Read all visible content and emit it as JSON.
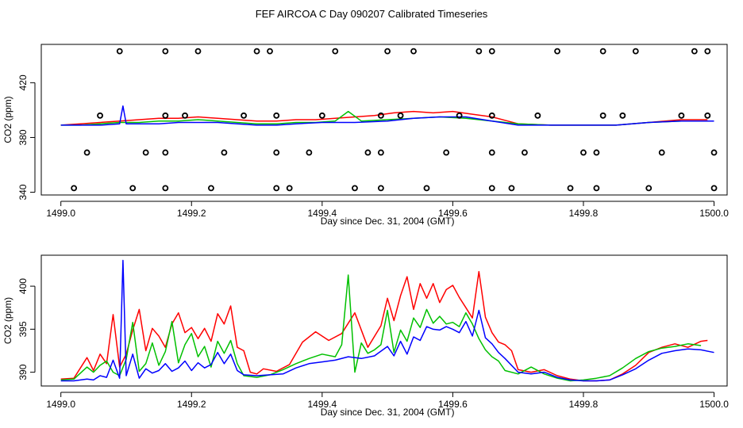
{
  "title": "FEF AIRCOA C  Day 090207  Calibrated Timeseries",
  "chart_data": [
    {
      "type": "line",
      "panel": "top",
      "title": "",
      "xlabel": "Day since Dec. 31, 2004 (GMT)",
      "ylabel": "CO2 (ppm)",
      "xlim": [
        1498.97,
        1500.02
      ],
      "ylim": [
        338,
        448
      ],
      "x_ticks": [
        1499.0,
        1499.2,
        1499.4,
        1499.6,
        1499.8,
        1500.0
      ],
      "x_tick_labels": [
        "1499.0",
        "1499.2",
        "1499.4",
        "1499.6",
        "1499.8",
        "1500.0"
      ],
      "y_ticks": [
        340,
        380,
        420
      ],
      "y_tick_labels": [
        "340",
        "380",
        "420"
      ],
      "series": [
        {
          "name": "red",
          "color": "#ff0000",
          "x": [
            1499.0,
            1499.03,
            1499.06,
            1499.09,
            1499.12,
            1499.15,
            1499.18,
            1499.21,
            1499.24,
            1499.27,
            1499.3,
            1499.33,
            1499.36,
            1499.39,
            1499.42,
            1499.45,
            1499.48,
            1499.51,
            1499.54,
            1499.57,
            1499.6,
            1499.63,
            1499.66,
            1499.7,
            1499.75,
            1499.8,
            1499.85,
            1499.9,
            1499.95,
            1499.99
          ],
          "y": [
            389,
            390,
            391,
            392,
            393,
            394,
            394,
            395,
            394,
            393,
            392,
            392,
            393,
            393,
            394,
            395,
            396,
            398,
            399,
            398,
            399,
            397,
            395,
            390,
            389,
            389,
            389,
            391,
            393,
            393
          ]
        },
        {
          "name": "green",
          "color": "#00c000",
          "x": [
            1499.0,
            1499.03,
            1499.06,
            1499.09,
            1499.12,
            1499.15,
            1499.18,
            1499.21,
            1499.24,
            1499.27,
            1499.3,
            1499.33,
            1499.36,
            1499.39,
            1499.42,
            1499.44,
            1499.46,
            1499.5,
            1499.54,
            1499.58,
            1499.62,
            1499.66,
            1499.7,
            1499.75,
            1499.8,
            1499.85,
            1499.9,
            1499.95,
            1499.99
          ],
          "y": [
            389,
            389,
            390,
            391,
            391,
            392,
            392,
            393,
            392,
            391,
            390,
            390,
            391,
            391,
            392,
            399,
            392,
            393,
            394,
            395,
            394,
            392,
            390,
            389,
            389,
            389,
            391,
            392,
            392
          ]
        },
        {
          "name": "blue",
          "color": "#0000ff",
          "x": [
            1499.0,
            1499.03,
            1499.06,
            1499.09,
            1499.095,
            1499.1,
            1499.12,
            1499.15,
            1499.18,
            1499.21,
            1499.24,
            1499.27,
            1499.3,
            1499.33,
            1499.36,
            1499.4,
            1499.45,
            1499.5,
            1499.54,
            1499.58,
            1499.62,
            1499.66,
            1499.7,
            1499.75,
            1499.8,
            1499.85,
            1499.9,
            1499.95,
            1500.0
          ],
          "y": [
            389,
            389,
            389,
            390,
            403,
            390,
            390,
            390,
            391,
            391,
            391,
            390,
            389,
            389,
            390,
            391,
            391,
            392,
            394,
            395,
            395,
            392,
            389,
            389,
            389,
            389,
            391,
            392,
            392
          ]
        }
      ],
      "markers": {
        "symbol": "circle",
        "x": [
          1499.09,
          1499.16,
          1499.21,
          1499.3,
          1499.32,
          1499.42,
          1499.5,
          1499.54,
          1499.64,
          1499.66,
          1499.76,
          1499.83,
          1499.88,
          1499.97,
          1499.99,
          1499.06,
          1499.16,
          1499.19,
          1499.28,
          1499.33,
          1499.4,
          1499.49,
          1499.52,
          1499.61,
          1499.66,
          1499.73,
          1499.83,
          1499.86,
          1499.95,
          1499.99,
          1499.04,
          1499.13,
          1499.16,
          1499.25,
          1499.33,
          1499.38,
          1499.47,
          1499.49,
          1499.59,
          1499.66,
          1499.71,
          1499.8,
          1499.82,
          1499.92,
          1500.0,
          1499.02,
          1499.11,
          1499.16,
          1499.23,
          1499.33,
          1499.35,
          1499.45,
          1499.49,
          1499.56,
          1499.66,
          1499.69,
          1499.78,
          1499.82,
          1499.9,
          1500.0
        ],
        "y": [
          443,
          443,
          443,
          443,
          443,
          443,
          443,
          443,
          443,
          443,
          443,
          443,
          443,
          443,
          443,
          396,
          396,
          396,
          396,
          396,
          396,
          396,
          396,
          396,
          396,
          396,
          396,
          396,
          396,
          396,
          369,
          369,
          369,
          369,
          369,
          369,
          369,
          369,
          369,
          369,
          369,
          369,
          369,
          369,
          369,
          343,
          343,
          343,
          343,
          343,
          343,
          343,
          343,
          343,
          343,
          343,
          343,
          343,
          343,
          343
        ]
      }
    },
    {
      "type": "line",
      "panel": "bottom",
      "title": "",
      "xlabel": "Day since Dec. 31, 2004 (GMT)",
      "ylabel": "CO2 (ppm)",
      "xlim": [
        1498.97,
        1500.02
      ],
      "ylim": [
        388.4,
        403.6
      ],
      "x_ticks": [
        1499.0,
        1499.2,
        1499.4,
        1499.6,
        1499.8,
        1500.0
      ],
      "x_tick_labels": [
        "1499.0",
        "1499.2",
        "1499.4",
        "1499.6",
        "1499.8",
        "1500.0"
      ],
      "y_ticks": [
        390,
        395,
        400
      ],
      "y_tick_labels": [
        "390",
        "395",
        "400"
      ],
      "series": [
        {
          "name": "red",
          "color": "#ff0000",
          "x": [
            1499.0,
            1499.02,
            1499.04,
            1499.05,
            1499.06,
            1499.07,
            1499.08,
            1499.09,
            1499.1,
            1499.11,
            1499.12,
            1499.13,
            1499.14,
            1499.15,
            1499.16,
            1499.17,
            1499.18,
            1499.19,
            1499.2,
            1499.21,
            1499.22,
            1499.23,
            1499.24,
            1499.25,
            1499.26,
            1499.27,
            1499.28,
            1499.29,
            1499.3,
            1499.31,
            1499.33,
            1499.35,
            1499.37,
            1499.39,
            1499.41,
            1499.43,
            1499.45,
            1499.47,
            1499.49,
            1499.5,
            1499.51,
            1499.52,
            1499.53,
            1499.54,
            1499.55,
            1499.56,
            1499.57,
            1499.58,
            1499.59,
            1499.6,
            1499.61,
            1499.62,
            1499.63,
            1499.64,
            1499.65,
            1499.66,
            1499.67,
            1499.68,
            1499.69,
            1499.7,
            1499.72,
            1499.74,
            1499.76,
            1499.78,
            1499.8,
            1499.82,
            1499.84,
            1499.86,
            1499.88,
            1499.9,
            1499.92,
            1499.94,
            1499.96,
            1499.98,
            1499.99
          ],
          "y": [
            389.2,
            389.3,
            391.7,
            390.2,
            392.1,
            391.0,
            396.7,
            390.6,
            392.1,
            394.9,
            397.3,
            392.5,
            395.1,
            394.2,
            392.9,
            395.6,
            396.9,
            394.6,
            395.2,
            393.9,
            395.1,
            393.6,
            396.8,
            395.6,
            397.7,
            392.9,
            392.5,
            390.0,
            389.8,
            390.4,
            390.1,
            390.9,
            393.5,
            394.7,
            393.7,
            394.5,
            396.9,
            392.9,
            395.4,
            398.6,
            396.0,
            398.9,
            401.1,
            397.3,
            400.3,
            398.6,
            400.3,
            398.1,
            399.6,
            400.1,
            398.7,
            397.5,
            396.3,
            401.7,
            396.4,
            394.6,
            393.5,
            393.2,
            392.5,
            390.3,
            390.0,
            390.3,
            389.6,
            389.2,
            389.0,
            389.0,
            389.1,
            389.8,
            390.8,
            392.3,
            392.9,
            393.3,
            392.9,
            393.6,
            393.7
          ]
        },
        {
          "name": "green",
          "color": "#00c000",
          "x": [
            1499.0,
            1499.02,
            1499.04,
            1499.05,
            1499.06,
            1499.07,
            1499.08,
            1499.09,
            1499.1,
            1499.11,
            1499.12,
            1499.13,
            1499.14,
            1499.15,
            1499.16,
            1499.17,
            1499.18,
            1499.19,
            1499.2,
            1499.21,
            1499.22,
            1499.23,
            1499.24,
            1499.25,
            1499.26,
            1499.27,
            1499.28,
            1499.3,
            1499.32,
            1499.34,
            1499.36,
            1499.38,
            1499.4,
            1499.42,
            1499.43,
            1499.44,
            1499.45,
            1499.46,
            1499.47,
            1499.48,
            1499.49,
            1499.5,
            1499.51,
            1499.52,
            1499.53,
            1499.54,
            1499.55,
            1499.56,
            1499.57,
            1499.58,
            1499.59,
            1499.6,
            1499.61,
            1499.62,
            1499.63,
            1499.64,
            1499.65,
            1499.66,
            1499.67,
            1499.68,
            1499.7,
            1499.72,
            1499.74,
            1499.76,
            1499.78,
            1499.8,
            1499.82,
            1499.84,
            1499.86,
            1499.88,
            1499.9,
            1499.92,
            1499.94,
            1499.96,
            1499.98
          ],
          "y": [
            389.1,
            389.2,
            390.6,
            390.0,
            390.8,
            391.3,
            390.0,
            389.6,
            391.5,
            395.8,
            390.1,
            391.0,
            393.4,
            390.8,
            392.4,
            395.9,
            391.1,
            393.2,
            394.5,
            391.8,
            393.0,
            390.6,
            393.6,
            392.2,
            393.7,
            391.0,
            389.6,
            389.4,
            389.7,
            390.3,
            391.0,
            391.6,
            392.1,
            391.8,
            393.2,
            401.3,
            390.0,
            393.4,
            392.2,
            392.6,
            393.2,
            397.2,
            392.3,
            394.9,
            393.6,
            396.3,
            395.2,
            397.3,
            395.7,
            396.5,
            395.6,
            395.8,
            395.3,
            396.9,
            395.6,
            393.9,
            392.6,
            391.8,
            391.3,
            390.2,
            389.8,
            390.6,
            389.8,
            389.3,
            389.0,
            389.1,
            389.3,
            389.6,
            390.5,
            391.6,
            392.4,
            392.8,
            393.0,
            393.3,
            393.1
          ]
        },
        {
          "name": "blue",
          "color": "#0000ff",
          "x": [
            1499.0,
            1499.02,
            1499.04,
            1499.05,
            1499.06,
            1499.07,
            1499.08,
            1499.09,
            1499.095,
            1499.1,
            1499.11,
            1499.12,
            1499.13,
            1499.14,
            1499.15,
            1499.16,
            1499.17,
            1499.18,
            1499.19,
            1499.2,
            1499.21,
            1499.22,
            1499.23,
            1499.24,
            1499.25,
            1499.26,
            1499.27,
            1499.28,
            1499.3,
            1499.32,
            1499.34,
            1499.36,
            1499.38,
            1499.4,
            1499.42,
            1499.44,
            1499.46,
            1499.48,
            1499.5,
            1499.51,
            1499.52,
            1499.53,
            1499.54,
            1499.55,
            1499.56,
            1499.57,
            1499.58,
            1499.59,
            1499.6,
            1499.61,
            1499.62,
            1499.63,
            1499.64,
            1499.65,
            1499.66,
            1499.67,
            1499.68,
            1499.7,
            1499.72,
            1499.74,
            1499.76,
            1499.78,
            1499.8,
            1499.82,
            1499.84,
            1499.86,
            1499.88,
            1499.9,
            1499.92,
            1499.94,
            1499.96,
            1499.98,
            1500.0
          ],
          "y": [
            389.0,
            389.0,
            389.2,
            389.1,
            389.6,
            389.4,
            391.4,
            389.3,
            403.0,
            389.6,
            392.1,
            389.3,
            390.4,
            389.9,
            390.2,
            391.0,
            390.1,
            390.5,
            391.3,
            390.2,
            391.1,
            390.5,
            390.9,
            392.3,
            391.0,
            392.1,
            390.2,
            389.7,
            389.6,
            389.7,
            389.8,
            390.5,
            391.0,
            391.2,
            391.4,
            391.8,
            391.6,
            391.9,
            393.0,
            391.9,
            393.6,
            392.1,
            394.1,
            393.7,
            395.3,
            395.0,
            394.9,
            395.3,
            395.0,
            394.6,
            395.9,
            394.2,
            397.2,
            394.0,
            393.3,
            392.3,
            391.6,
            390.0,
            389.8,
            390.0,
            389.4,
            389.1,
            389.0,
            389.0,
            389.1,
            389.7,
            390.4,
            391.4,
            392.2,
            392.5,
            392.7,
            392.6,
            392.3
          ]
        }
      ]
    }
  ]
}
